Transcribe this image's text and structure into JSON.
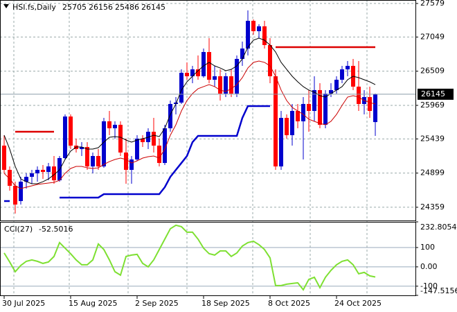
{
  "chart_data": [
    {
      "type": "candlestick",
      "title": "HSI.fs,Daily",
      "categories": [
        "30 Jul 2025",
        null,
        null,
        null,
        null,
        null,
        null,
        null,
        null,
        null,
        null,
        null,
        "15 Aug 2025",
        null,
        null,
        null,
        null,
        null,
        null,
        null,
        null,
        null,
        null,
        null,
        "2 Sep 2025",
        null,
        null,
        null,
        null,
        null,
        null,
        null,
        null,
        null,
        null,
        null,
        "18 Sep 2025",
        null,
        null,
        null,
        null,
        null,
        null,
        null,
        null,
        null,
        null,
        null,
        "8 Oct 2025",
        null,
        null,
        null,
        null,
        null,
        null,
        null,
        null,
        null,
        null,
        null,
        "24 Oct 2025",
        null,
        null,
        null,
        null,
        null,
        null,
        null
      ],
      "open": [
        25333,
        24950,
        24698,
        24457,
        24763,
        24840,
        24895,
        24950,
        24917,
        25004,
        24785,
        25136,
        25793,
        25333,
        25278,
        25311,
        25004,
        25169,
        25004,
        25717,
        25607,
        25662,
        25224,
        24950,
        25114,
        25443,
        25388,
        25552,
        25333,
        25059,
        25607,
        25991,
        26013,
        26484,
        26429,
        26538,
        26429,
        26812,
        26374,
        26429,
        26155,
        26429,
        26155,
        26703,
        26867,
        27305,
        27141,
        27218,
        26922,
        26429,
        25004,
        25771,
        25498,
        25881,
        25717,
        25991,
        25881,
        26210,
        25662,
        26155,
        26210,
        26374,
        26538,
        26593,
        26265,
        25991,
        26100,
        25705
      ],
      "high": [
        25498,
        25004,
        24763,
        24840,
        24895,
        24950,
        25004,
        25026,
        25059,
        25169,
        25169,
        25826,
        25826,
        25443,
        25388,
        25388,
        25224,
        25278,
        25771,
        25881,
        25717,
        25717,
        25443,
        25169,
        25498,
        25498,
        25607,
        25771,
        25443,
        25662,
        26045,
        26100,
        26538,
        26648,
        26593,
        26758,
        26867,
        27031,
        26593,
        26538,
        26484,
        26538,
        26758,
        26977,
        27470,
        27327,
        27251,
        27305,
        27031,
        26538,
        25881,
        25826,
        25991,
        25991,
        26100,
        26210,
        26429,
        26319,
        26210,
        26319,
        26429,
        26593,
        26670,
        26703,
        26670,
        26210,
        26265,
        26156
      ],
      "low": [
        24895,
        24621,
        24260,
        24402,
        24654,
        24731,
        24763,
        24807,
        24785,
        24731,
        24763,
        25114,
        25278,
        25224,
        25169,
        24950,
        24895,
        24950,
        24982,
        25498,
        25443,
        25169,
        24731,
        24731,
        25092,
        25311,
        25278,
        25224,
        25004,
        25026,
        25552,
        25826,
        25991,
        26374,
        26319,
        26374,
        26407,
        26319,
        26265,
        26045,
        26100,
        26100,
        26100,
        26593,
        26758,
        27086,
        27031,
        26867,
        26319,
        24950,
        24950,
        25443,
        25333,
        25607,
        25114,
        25552,
        25717,
        25607,
        25607,
        26100,
        26155,
        26319,
        26429,
        26210,
        25881,
        25826,
        25771,
        25486
      ],
      "close": [
        24950,
        24698,
        24402,
        24763,
        24840,
        24895,
        24950,
        24917,
        25004,
        24785,
        25136,
        25793,
        25333,
        25278,
        25311,
        25004,
        25169,
        25004,
        25717,
        25607,
        25662,
        25224,
        24950,
        25114,
        25443,
        25388,
        25552,
        25333,
        25059,
        25607,
        25991,
        26013,
        26484,
        26429,
        26538,
        26429,
        26812,
        26374,
        26429,
        26155,
        26429,
        26155,
        26703,
        26867,
        27305,
        27141,
        27218,
        26922,
        26429,
        25004,
        25771,
        25498,
        25881,
        25717,
        25991,
        25881,
        26210,
        25662,
        26155,
        26210,
        26374,
        26538,
        26593,
        26265,
        25991,
        26100,
        25881,
        26145
      ],
      "up_color": "#0000cd",
      "down_color": "#ff0000",
      "ylim": [
        24150,
        27634
      ],
      "yticks": [
        27579,
        27049,
        26509,
        25969,
        25439,
        24899,
        24359
      ],
      "grid": true,
      "overlays": [
        {
          "color": "#000000",
          "values": [
            25498,
            25278,
            25004,
            24807,
            24763,
            24731,
            24731,
            24763,
            24807,
            24873,
            24950,
            25114,
            25246,
            25311,
            25311,
            25278,
            25278,
            25300,
            25388,
            25465,
            25476,
            25465,
            25421,
            25388,
            25421,
            25443,
            25465,
            25498,
            25476,
            25607,
            25826,
            25991,
            26210,
            26341,
            26429,
            26517,
            26593,
            26648,
            26593,
            26560,
            26517,
            26538,
            26593,
            26703,
            26889,
            26999,
            27031,
            26999,
            26922,
            26812,
            26648,
            26538,
            26429,
            26341,
            26265,
            26210,
            26177,
            26122,
            26100,
            26155,
            26210,
            26265,
            26374,
            26429,
            26407,
            26374,
            26341,
            26297
          ]
        },
        {
          "color": "#cc0000",
          "values": [
            24895,
            24807,
            24698,
            24654,
            24676,
            24698,
            24720,
            24731,
            24742,
            24753,
            24785,
            24895,
            24972,
            25004,
            25004,
            24982,
            24972,
            24982,
            25037,
            25081,
            25114,
            25136,
            25114,
            25059,
            25092,
            25136,
            25158,
            25169,
            25136,
            25278,
            25498,
            25662,
            25881,
            26045,
            26155,
            26232,
            26265,
            26297,
            26265,
            26210,
            26188,
            26232,
            26297,
            26407,
            26560,
            26648,
            26670,
            26648,
            26593,
            26429,
            26210,
            26045,
            25936,
            25881,
            25826,
            25750,
            25717,
            25684,
            25662,
            25717,
            25826,
            25969,
            26100,
            26122,
            26100,
            26045,
            26013,
            25991
          ]
        },
        {
          "color": "#0000cd",
          "values": [
            24457,
            24457,
            null,
            null,
            null,
            null,
            null,
            null,
            null,
            null,
            24512,
            24512,
            24512,
            24512,
            24512,
            24512,
            24512,
            24512,
            24566,
            24566,
            24566,
            24566,
            24566,
            24566,
            24566,
            24566,
            24566,
            24566,
            24566,
            24676,
            24840,
            24950,
            25059,
            25169,
            25388,
            25487,
            25487,
            25487,
            25487,
            25487,
            25487,
            25487,
            25487,
            25771,
            25958,
            25958,
            25958,
            25958,
            25958,
            null,
            null,
            null,
            null,
            null,
            null,
            null,
            null,
            null,
            null,
            null,
            null,
            null,
            null,
            null,
            null,
            null,
            null,
            null
          ]
        },
        {
          "color": "#dd0000",
          "values": [
            null,
            null,
            25552,
            25552,
            25552,
            25552,
            25552,
            25552,
            25552,
            25552,
            null,
            null,
            null,
            null,
            null,
            null,
            null,
            null,
            null,
            null,
            null,
            null,
            null,
            null,
            null,
            null,
            null,
            null,
            null,
            null,
            null,
            null,
            null,
            null,
            null,
            null,
            null,
            null,
            null,
            null,
            null,
            null,
            null,
            null,
            null,
            null,
            null,
            null,
            null,
            26889,
            26889,
            26889,
            26889,
            26889,
            26889,
            26889,
            26889,
            26889,
            26889,
            26889,
            26889,
            26889,
            26889,
            26889,
            26889,
            26889,
            26889,
            26889
          ]
        }
      ]
    },
    {
      "type": "line",
      "title": "CCI(27)",
      "color": "#7ee032",
      "values": [
        71.7,
        25.1,
        -25.1,
        7.2,
        28.7,
        35.9,
        28.7,
        17.9,
        25.1,
        53.8,
        125.5,
        96.8,
        68.1,
        35.9,
        10.8,
        10.8,
        35.9,
        118.4,
        89.7,
        35.9,
        -25.1,
        -43.0,
        53.8,
        61.0,
        64.6,
        17.9,
        0,
        35.9,
        89.7,
        143.5,
        197.3,
        215.2,
        208.1,
        179.4,
        179.4,
        143.5,
        96.8,
        68.1,
        61.0,
        82.5,
        82.5,
        53.8,
        71.7,
        107.6,
        125.5,
        132.7,
        114.8,
        89.7,
        46.6,
        -96.8,
        -96.8,
        -89.7,
        -86.1,
        -82.5,
        -118.4,
        -64.6,
        -53.8,
        -107.6,
        -53.8,
        -17.9,
        10.8,
        28.7,
        35.9,
        10.8,
        -35.9,
        -28.7,
        -46.6,
        -52.5016
      ],
      "ylim": [
        -147.5156,
        232.8054
      ],
      "yticks": [
        232.8054,
        100,
        {
          "value": 0,
          "label": "0.00"
        },
        -100,
        -147.5156
      ]
    }
  ]
}
